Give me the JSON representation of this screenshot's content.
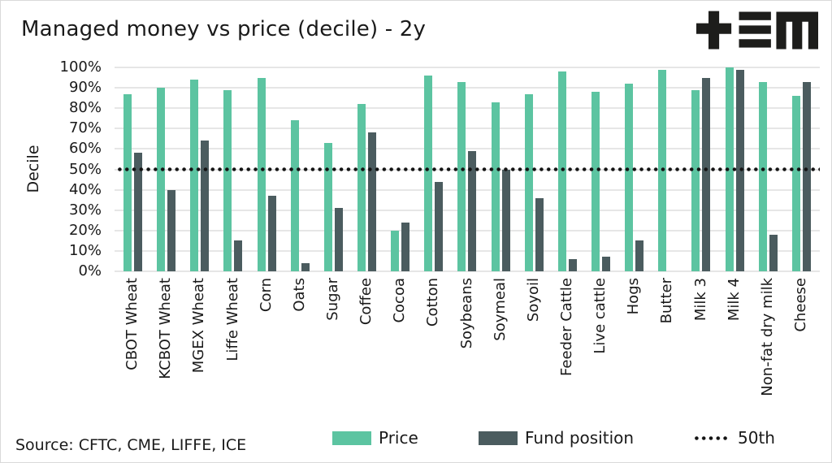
{
  "title": "Managed money vs price (decile) - 2y",
  "logo": {
    "name": "tem-logo",
    "color": "#1d1d1b"
  },
  "source": "Source: CFTC, CME, LIFFE, ICE",
  "y_axis": {
    "label": "Decile",
    "ticks": [
      "0%",
      "10%",
      "20%",
      "30%",
      "40%",
      "50%",
      "60%",
      "70%",
      "80%",
      "90%",
      "100%"
    ]
  },
  "legend": [
    {
      "label": "Price",
      "type": "swatch",
      "color": "#5CC4A1"
    },
    {
      "label": "Fund position",
      "type": "swatch",
      "color": "#4B5C5F"
    },
    {
      "label": "50th",
      "type": "dotted-line",
      "color": "#141414"
    }
  ],
  "colors": {
    "price_green": "#5CC4A1",
    "fund_dark": "#4B5C5F",
    "grid": "#e6e6e6",
    "reference_dotted": "#141414",
    "text": "#1a1a1a",
    "background": "#ffffff",
    "border": "#d9d9d9"
  },
  "chart_data": {
    "type": "bar",
    "title": "Managed money vs price (decile) - 2y",
    "xlabel": "",
    "ylabel": "Decile",
    "ylim": [
      0,
      100
    ],
    "y_tick_step": 10,
    "y_tick_format": "percent",
    "grid": "horizontal",
    "legend_position": "bottom",
    "categories": [
      "CBOT Wheat",
      "KCBOT Wheat",
      "MGEX Wheat",
      "Liffe Wheat",
      "Corn",
      "Oats",
      "Sugar",
      "Coffee",
      "Cocoa",
      "Cotton",
      "Soybeans",
      "Soymeal",
      "Soyoil",
      "Feeder Cattle",
      "Live cattle",
      "Hogs",
      "Butter",
      "Milk 3",
      "Milk 4",
      "Non-fat dry milk",
      "Cheese"
    ],
    "series": [
      {
        "name": "Price",
        "color": "#5CC4A1",
        "values": [
          87,
          90,
          94,
          89,
          95,
          74,
          63,
          82,
          20,
          96,
          93,
          83,
          87,
          98,
          88,
          92,
          99,
          89,
          100,
          93,
          86
        ]
      },
      {
        "name": "Fund position",
        "color": "#4B5C5F",
        "values": [
          58,
          40,
          64,
          15,
          37,
          4,
          31,
          68,
          24,
          44,
          59,
          50,
          36,
          6,
          7,
          15,
          0,
          95,
          99,
          18,
          93
        ]
      }
    ],
    "reference_line": {
      "label": "50th",
      "value": 50,
      "style": "dotted",
      "color": "#141414"
    }
  }
}
